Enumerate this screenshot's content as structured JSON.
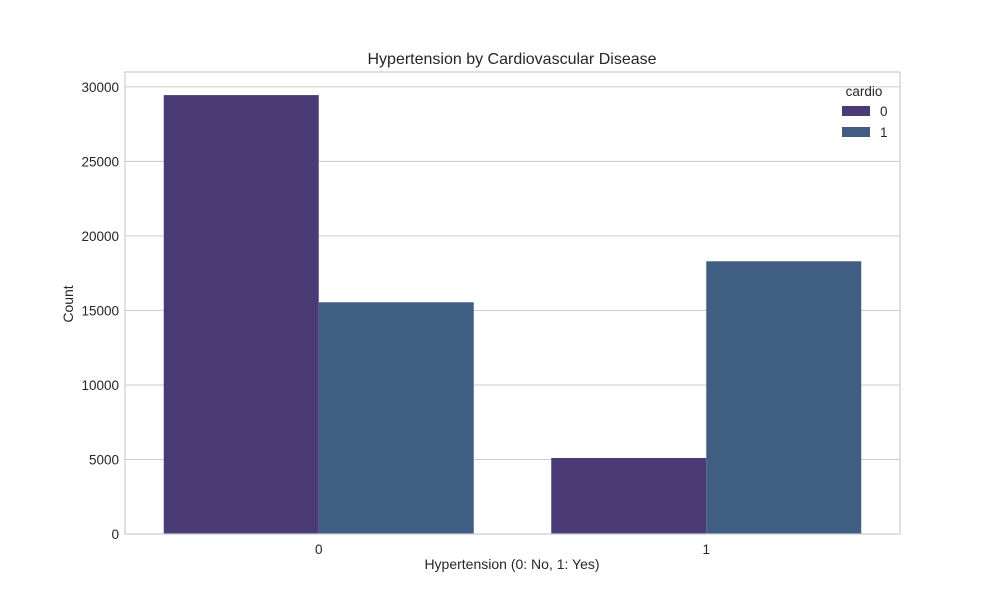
{
  "chart_data": {
    "type": "bar",
    "title": "Hypertension by Cardiovascular Disease",
    "xlabel": "Hypertension (0: No, 1: Yes)",
    "ylabel": "Count",
    "categories": [
      "0",
      "1"
    ],
    "ylim": [
      0,
      31000
    ],
    "yticks": [
      0,
      5000,
      10000,
      15000,
      20000,
      25000,
      30000
    ],
    "grid": true,
    "legend": {
      "title": "cardio",
      "placement": "top-right"
    },
    "series": [
      {
        "name": "0",
        "color": "#4a3a75",
        "values": [
          29450,
          5100
        ]
      },
      {
        "name": "1",
        "color": "#405e82",
        "values": [
          15550,
          18300
        ]
      }
    ]
  }
}
